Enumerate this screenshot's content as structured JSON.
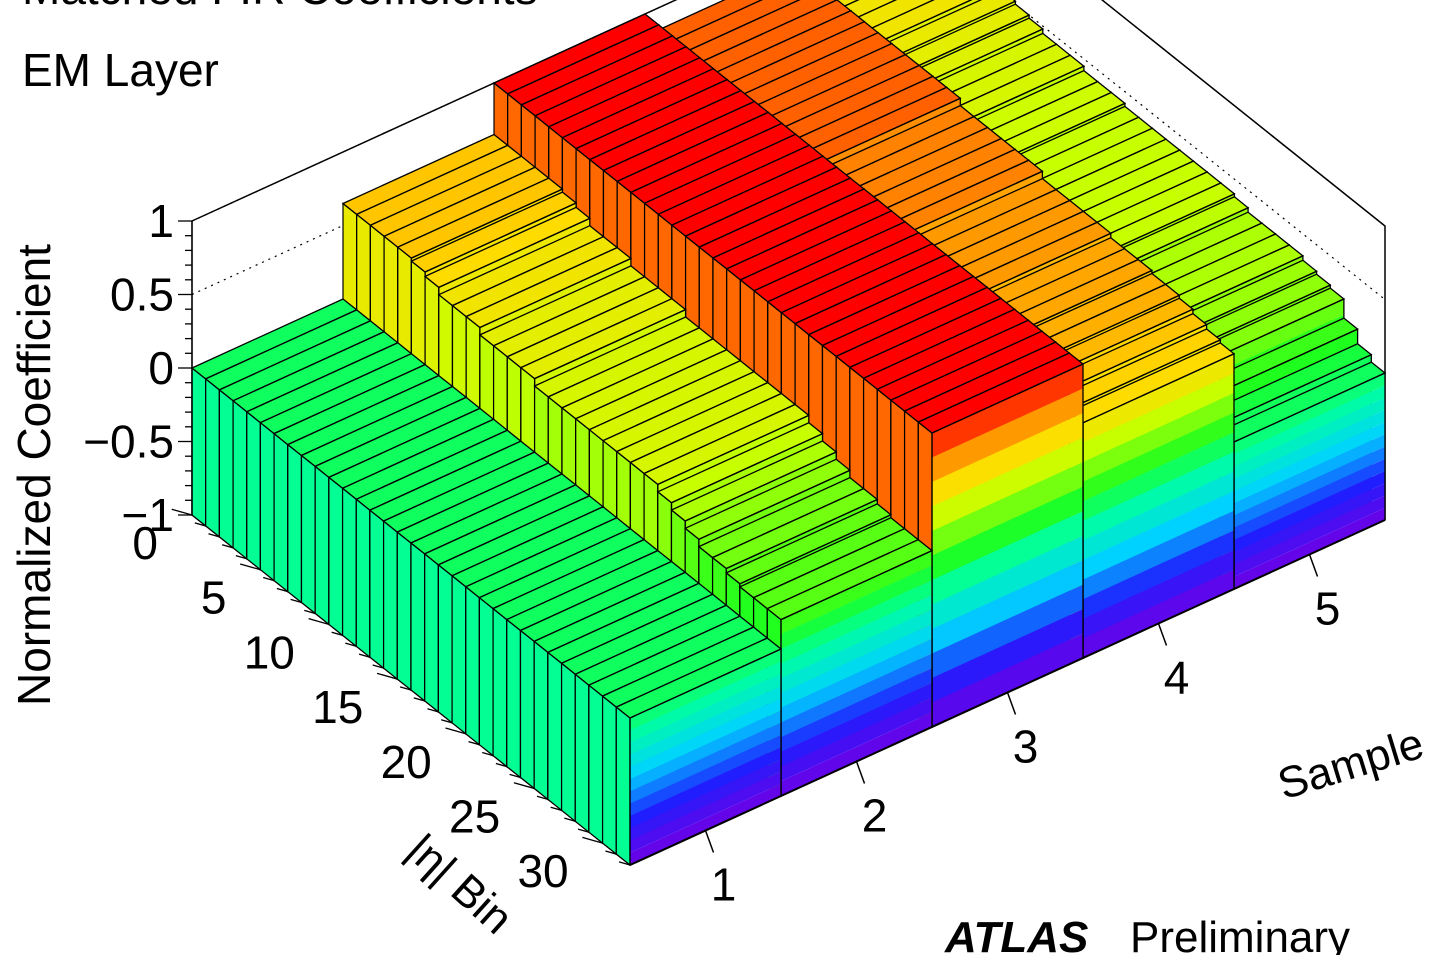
{
  "header": {
    "title_line1": "Matched FIR Coefficients",
    "title_line2": "EM Layer"
  },
  "branding": {
    "experiment": "ATLAS",
    "status": "Preliminary"
  },
  "chart_data": {
    "type": "lego3d",
    "zlabel": "Normalized Coefficient",
    "ylabel": "|η| Bin",
    "xlabel": "Sample",
    "zlim": [
      -1,
      1
    ],
    "z_ticks": [
      "1",
      "0.5",
      "0",
      "−0.5",
      "−1"
    ],
    "eta_ticks": [
      "0",
      "5",
      "10",
      "15",
      "20",
      "25",
      "30"
    ],
    "sample_ticks": [
      "1",
      "2",
      "3",
      "4",
      "5"
    ],
    "eta_bins": 32,
    "samples": [
      1,
      2,
      3,
      4,
      5
    ],
    "series": [
      {
        "sample": 1,
        "values": [
          0.0,
          0.0,
          0.0,
          0.0,
          0.0,
          0.0,
          0.0,
          0.0,
          0.0,
          0.0,
          0.0,
          0.0,
          0.0,
          0.0,
          0.0,
          0.0,
          0.0,
          0.0,
          0.0,
          0.0,
          0.0,
          0.0,
          0.0,
          0.0,
          0.0,
          0.0,
          0.0,
          0.0,
          0.0,
          0.0,
          0.0,
          0.0
        ]
      },
      {
        "sample": 2,
        "values": [
          0.65,
          0.65,
          0.65,
          0.65,
          0.65,
          0.63,
          0.6,
          0.55,
          0.55,
          0.55,
          0.5,
          0.5,
          0.5,
          0.5,
          0.45,
          0.45,
          0.45,
          0.45,
          0.45,
          0.45,
          0.45,
          0.45,
          0.45,
          0.4,
          0.35,
          0.3,
          0.25,
          0.25,
          0.22,
          0.2,
          0.2,
          0.2
        ]
      },
      {
        "sample": 3,
        "values": [
          1.0,
          1.0,
          1.0,
          1.0,
          1.0,
          1.0,
          1.0,
          1.0,
          1.0,
          1.0,
          1.0,
          1.0,
          1.0,
          1.0,
          1.0,
          1.0,
          1.0,
          1.0,
          1.0,
          1.0,
          1.0,
          1.0,
          1.0,
          1.0,
          1.0,
          1.0,
          1.0,
          1.0,
          1.0,
          1.0,
          1.0,
          1.0
        ]
      },
      {
        "sample": 4,
        "values": [
          0.85,
          0.85,
          0.85,
          0.85,
          0.85,
          0.85,
          0.85,
          0.85,
          0.85,
          0.85,
          0.85,
          0.85,
          0.8,
          0.8,
          0.8,
          0.8,
          0.8,
          0.8,
          0.75,
          0.75,
          0.75,
          0.75,
          0.75,
          0.72,
          0.72,
          0.72,
          0.7,
          0.7,
          0.68,
          0.65,
          0.62,
          0.6
        ]
      },
      {
        "sample": 5,
        "values": [
          0.55,
          0.55,
          0.55,
          0.55,
          0.52,
          0.5,
          0.48,
          0.45,
          0.45,
          0.45,
          0.42,
          0.42,
          0.42,
          0.4,
          0.4,
          0.4,
          0.4,
          0.4,
          0.4,
          0.4,
          0.4,
          0.38,
          0.35,
          0.35,
          0.35,
          0.35,
          0.32,
          0.3,
          0.28,
          0.15,
          0.05,
          0.0
        ]
      }
    ]
  }
}
